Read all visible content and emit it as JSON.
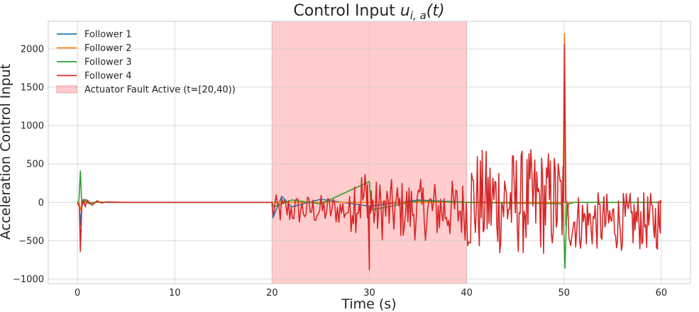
{
  "chart_data": {
    "type": "line",
    "title": "Control Input ",
    "title_math_var": "u",
    "title_math_sub": "i, a",
    "title_math_arg": "(t)",
    "xlabel": "Time (s)",
    "ylabel": "Acceleration Control Input",
    "xlim": [
      -3,
      63
    ],
    "ylim": [
      -1060,
      2360
    ],
    "x_ticks": [
      0,
      10,
      20,
      30,
      40,
      50,
      60
    ],
    "y_ticks": [
      -1000,
      -500,
      0,
      500,
      1000,
      1500,
      2000
    ],
    "y_tick_labels": [
      "−1000",
      "−500",
      "0",
      "500",
      "1000",
      "1500",
      "2000"
    ],
    "grid": true,
    "legend_position": "top-left",
    "shaded_region": {
      "x_start": 20,
      "x_end": 40,
      "label": "Actuator Fault Active (t=[20,40))",
      "color": "#ff9c9c"
    },
    "series": [
      {
        "name": "Follower 1",
        "color": "#1f77b4",
        "points": [
          [
            0,
            0
          ],
          [
            0.2,
            -10
          ],
          [
            0.3,
            -300
          ],
          [
            0.5,
            20
          ],
          [
            1,
            -5
          ],
          [
            2,
            0
          ],
          [
            20,
            0
          ],
          [
            20.1,
            -200
          ],
          [
            21,
            80
          ],
          [
            22,
            -60
          ],
          [
            25,
            40
          ],
          [
            30,
            -50
          ],
          [
            35,
            30
          ],
          [
            40,
            0
          ],
          [
            50,
            0
          ],
          [
            60,
            0
          ]
        ]
      },
      {
        "name": "Follower 2",
        "color": "#ff7f0e",
        "points": [
          [
            0,
            0
          ],
          [
            0.2,
            -20
          ],
          [
            0.3,
            -100
          ],
          [
            0.6,
            30
          ],
          [
            1,
            -10
          ],
          [
            2,
            0
          ],
          [
            20,
            0
          ],
          [
            30,
            0
          ],
          [
            40,
            0
          ],
          [
            49.9,
            0
          ],
          [
            50.05,
            2200
          ],
          [
            50.15,
            -300
          ],
          [
            50.5,
            0
          ],
          [
            60,
            0
          ]
        ]
      },
      {
        "name": "Follower 3",
        "color": "#2ca02c",
        "points": [
          [
            0,
            0
          ],
          [
            0.15,
            20
          ],
          [
            0.3,
            410
          ],
          [
            0.45,
            -50
          ],
          [
            0.8,
            40
          ],
          [
            1.2,
            -20
          ],
          [
            2,
            5
          ],
          [
            3,
            0
          ],
          [
            20,
            0
          ],
          [
            20.2,
            -60
          ],
          [
            22,
            30
          ],
          [
            25,
            -20
          ],
          [
            30,
            270
          ],
          [
            30.2,
            -100
          ],
          [
            35,
            20
          ],
          [
            40,
            0
          ],
          [
            49.9,
            -20
          ],
          [
            50.1,
            -860
          ],
          [
            50.3,
            -30
          ],
          [
            51,
            0
          ],
          [
            60,
            0
          ]
        ]
      },
      {
        "name": "Follower 4",
        "color": "#d62728",
        "noisy_segments": [
          {
            "x_start": 20,
            "x_end": 28,
            "mean": -100,
            "amplitude": 200,
            "step": 0.14
          },
          {
            "x_start": 28,
            "x_end": 30,
            "mean": 50,
            "amplitude": 450,
            "step": 0.12
          },
          {
            "x_start": 30,
            "x_end": 40,
            "mean": -100,
            "amplitude": 400,
            "step": 0.12
          },
          {
            "x_start": 40,
            "x_end": 50,
            "mean": 0,
            "amplitude": 700,
            "step": 0.1
          },
          {
            "x_start": 50.3,
            "x_end": 60,
            "mean": -250,
            "amplitude": 380,
            "step": 0.1
          }
        ],
        "points": [
          [
            0,
            0
          ],
          [
            0.2,
            -60
          ],
          [
            0.3,
            -640
          ],
          [
            0.45,
            -50
          ],
          [
            0.6,
            40
          ],
          [
            0.8,
            -60
          ],
          [
            1,
            30
          ],
          [
            1.5,
            -40
          ],
          [
            2,
            20
          ],
          [
            2.5,
            -10
          ],
          [
            3,
            5
          ],
          [
            5,
            0
          ],
          [
            20,
            0
          ],
          [
            29.8,
            -200
          ],
          [
            30,
            -880
          ],
          [
            30.2,
            150
          ],
          [
            49.95,
            0
          ],
          [
            50.05,
            2060
          ],
          [
            50.2,
            0
          ],
          [
            59.9,
            -400
          ],
          [
            60,
            0
          ]
        ]
      }
    ]
  }
}
